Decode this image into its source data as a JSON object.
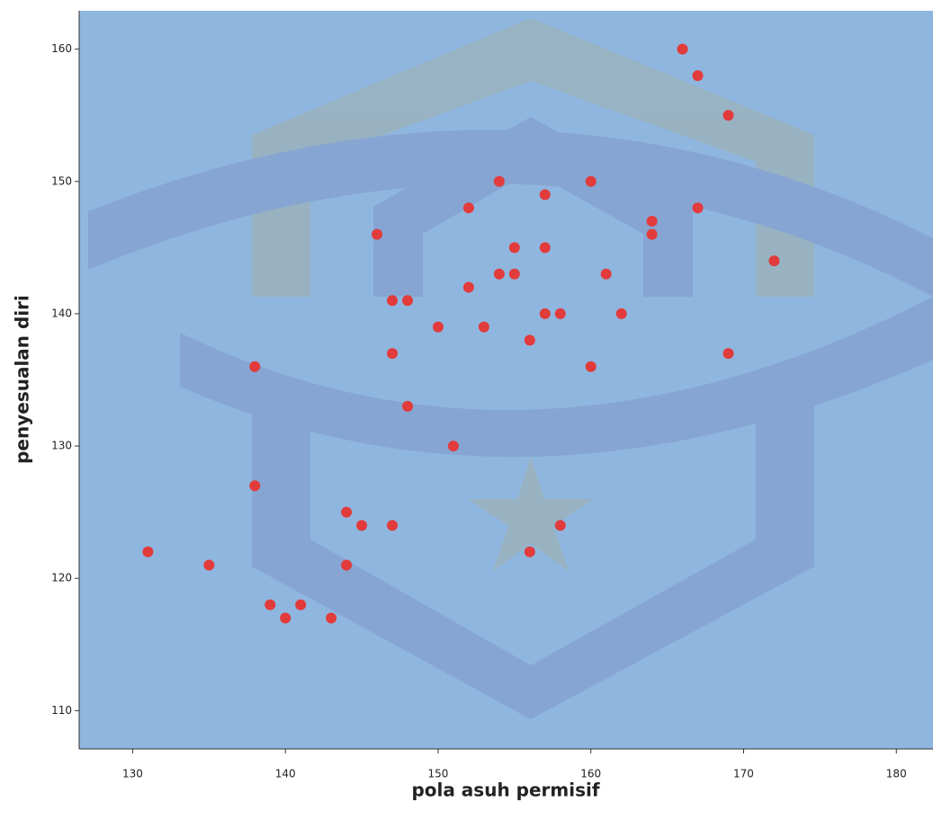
{
  "chart_data": {
    "type": "scatter",
    "x_label": "pola asuh permisif",
    "y_label": "penyesualan diri",
    "x": [
      166,
      167,
      169,
      154,
      160,
      157,
      152,
      167,
      164,
      164,
      146,
      155,
      157,
      172,
      154,
      155,
      161,
      152,
      147,
      148,
      157,
      158,
      162,
      150,
      153,
      156,
      147,
      169,
      138,
      160,
      148,
      151,
      138,
      144,
      145,
      147,
      158,
      131,
      135,
      144,
      156,
      139,
      141,
      140,
      143
    ],
    "values": [
      160,
      158,
      155,
      150,
      150,
      149,
      148,
      148,
      147,
      146,
      146,
      145,
      145,
      144,
      143,
      143,
      143,
      142,
      141,
      141,
      140,
      140,
      140,
      139,
      139,
      138,
      137,
      137,
      136,
      136,
      133,
      130,
      127,
      125,
      124,
      124,
      124,
      122,
      121,
      121,
      122,
      118,
      118,
      117,
      117
    ],
    "color": "#e23b3b",
    "background": "#8fb6df",
    "xlim": [
      126.5,
      182.4
    ],
    "ylim": [
      107.1,
      162.9
    ],
    "xticks": [
      130,
      140,
      150,
      160,
      170,
      180
    ],
    "yticks": [
      110,
      120,
      130,
      140,
      150,
      160
    ]
  }
}
